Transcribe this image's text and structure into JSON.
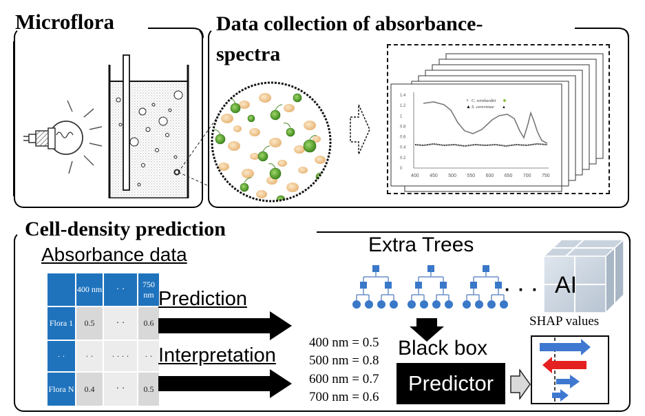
{
  "titles": {
    "microflora": "Microflora",
    "data_collection_1": "Data collection of absorbance-",
    "data_collection_2": "spectra",
    "cell_density": "Cell-density prediction"
  },
  "absorbance": {
    "heading": "Absorbance data",
    "header": [
      "",
      "400 nm",
      "· ·",
      "750 nm"
    ],
    "rows": [
      [
        "Flora 1",
        "0.5",
        "· ·",
        "0.6"
      ],
      [
        "· ·",
        "· ·",
        "· · · ·",
        "· ·"
      ],
      [
        "Flora N",
        "0.4",
        "· ·",
        "0.5"
      ]
    ]
  },
  "arrows": {
    "prediction": "Prediction",
    "interpretation": "Interpretation"
  },
  "models": {
    "extra_trees": "Extra Trees",
    "ellipsis": "· · ·",
    "ai": "AI",
    "shap": "SHAP values",
    "black_box": "Black box",
    "predictor": "Predictor"
  },
  "values": [
    "400 nm = 0.5",
    "500 nm = 0.8",
    "600 nm = 0.7",
    "700 nm = 0.6"
  ],
  "spectra_chart": {
    "legend": [
      "C. reinhardtii",
      "S. cerevisiae"
    ],
    "x_ticks": [
      "400",
      "450",
      "500",
      "550",
      "600",
      "650",
      "700",
      "750"
    ],
    "y_ticks": [
      "1.4",
      "1.2",
      "1",
      "0.8",
      "0.6",
      "0.4",
      "0.2",
      "0"
    ]
  },
  "colors": {
    "blue": "#1f73bd",
    "tree_blue": "#3a78c8",
    "red": "#e02020",
    "green_cell": "#5aa02c",
    "yeast": "#f0c890"
  }
}
